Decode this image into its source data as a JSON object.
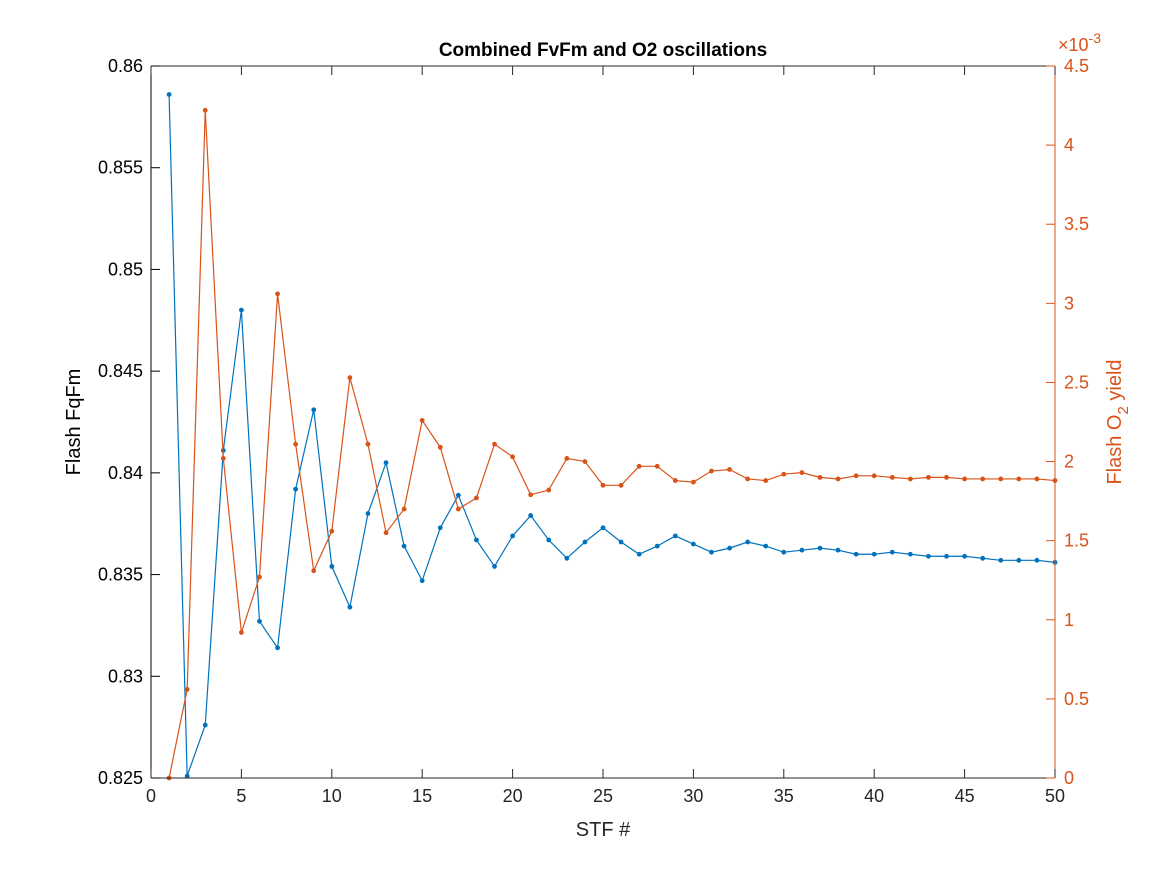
{
  "chart_data": {
    "type": "line",
    "title": "Combined FvFm and O2 oscillations",
    "xlabel": "STF #",
    "xlim": [
      0,
      50
    ],
    "xticks": [
      0,
      5,
      10,
      15,
      20,
      25,
      30,
      35,
      40,
      45,
      50
    ],
    "grid": false,
    "left_axis": {
      "label": "Flash FqFm",
      "ylim": [
        0.825,
        0.86
      ],
      "ticks": [
        0.825,
        0.83,
        0.835,
        0.84,
        0.845,
        0.85,
        0.855,
        0.86
      ],
      "tick_labels": [
        "0.825",
        "0.83",
        "0.835",
        "0.84",
        "0.845",
        "0.85",
        "0.855",
        "0.86"
      ],
      "color": "#0072BD"
    },
    "right_axis": {
      "label_main": "Flash O",
      "label_sub": "2",
      "label_tail": " yield",
      "ylim": [
        0,
        4.5
      ],
      "ticks": [
        0,
        0.5,
        1,
        1.5,
        2,
        2.5,
        3,
        3.5,
        4,
        4.5
      ],
      "tick_labels": [
        "0",
        "0.5",
        "1",
        "1.5",
        "2",
        "2.5",
        "3",
        "3.5",
        "4",
        "4.5"
      ],
      "exponent_base": "×10",
      "exponent_power": "-3",
      "color": "#D95319"
    },
    "series": [
      {
        "axis": "left",
        "color": "#0072BD",
        "x": [
          1,
          2,
          3,
          4,
          5,
          6,
          7,
          8,
          9,
          10,
          11,
          12,
          13,
          14,
          15,
          16,
          17,
          18,
          19,
          20,
          21,
          22,
          23,
          24,
          25,
          26,
          27,
          28,
          29,
          30,
          31,
          32,
          33,
          34,
          35,
          36,
          37,
          38,
          39,
          40,
          41,
          42,
          43,
          44,
          45,
          46,
          47,
          48,
          49,
          50
        ],
        "y": [
          0.8586,
          0.8251,
          0.8276,
          0.8411,
          0.848,
          0.8327,
          0.8314,
          0.8392,
          0.8431,
          0.8354,
          0.8334,
          0.838,
          0.8405,
          0.8364,
          0.8347,
          0.8373,
          0.8389,
          0.8367,
          0.8354,
          0.8369,
          0.8379,
          0.8367,
          0.8358,
          0.8366,
          0.8373,
          0.8366,
          0.836,
          0.8364,
          0.8369,
          0.8365,
          0.8361,
          0.8363,
          0.8366,
          0.8364,
          0.8361,
          0.8362,
          0.8363,
          0.8362,
          0.836,
          0.836,
          0.8361,
          0.836,
          0.8359,
          0.8359,
          0.8359,
          0.8358,
          0.8357,
          0.8357,
          0.8357,
          0.8356
        ]
      },
      {
        "axis": "right",
        "color": "#D95319",
        "x": [
          1,
          2,
          3,
          4,
          5,
          6,
          7,
          8,
          9,
          10,
          11,
          12,
          13,
          14,
          15,
          16,
          17,
          18,
          19,
          20,
          21,
          22,
          23,
          24,
          25,
          26,
          27,
          28,
          29,
          30,
          31,
          32,
          33,
          34,
          35,
          36,
          37,
          38,
          39,
          40,
          41,
          42,
          43,
          44,
          45,
          46,
          47,
          48,
          49,
          50
        ],
        "y": [
          0.0,
          0.56,
          4.22,
          2.02,
          0.92,
          1.27,
          3.06,
          2.11,
          1.31,
          1.56,
          2.53,
          2.11,
          1.55,
          1.7,
          2.26,
          2.09,
          1.7,
          1.77,
          2.11,
          2.03,
          1.79,
          1.82,
          2.02,
          2.0,
          1.85,
          1.85,
          1.97,
          1.97,
          1.88,
          1.87,
          1.94,
          1.95,
          1.89,
          1.88,
          1.92,
          1.93,
          1.9,
          1.89,
          1.91,
          1.91,
          1.9,
          1.89,
          1.9,
          1.9,
          1.89,
          1.89,
          1.89,
          1.89,
          1.89,
          1.88
        ]
      }
    ]
  }
}
